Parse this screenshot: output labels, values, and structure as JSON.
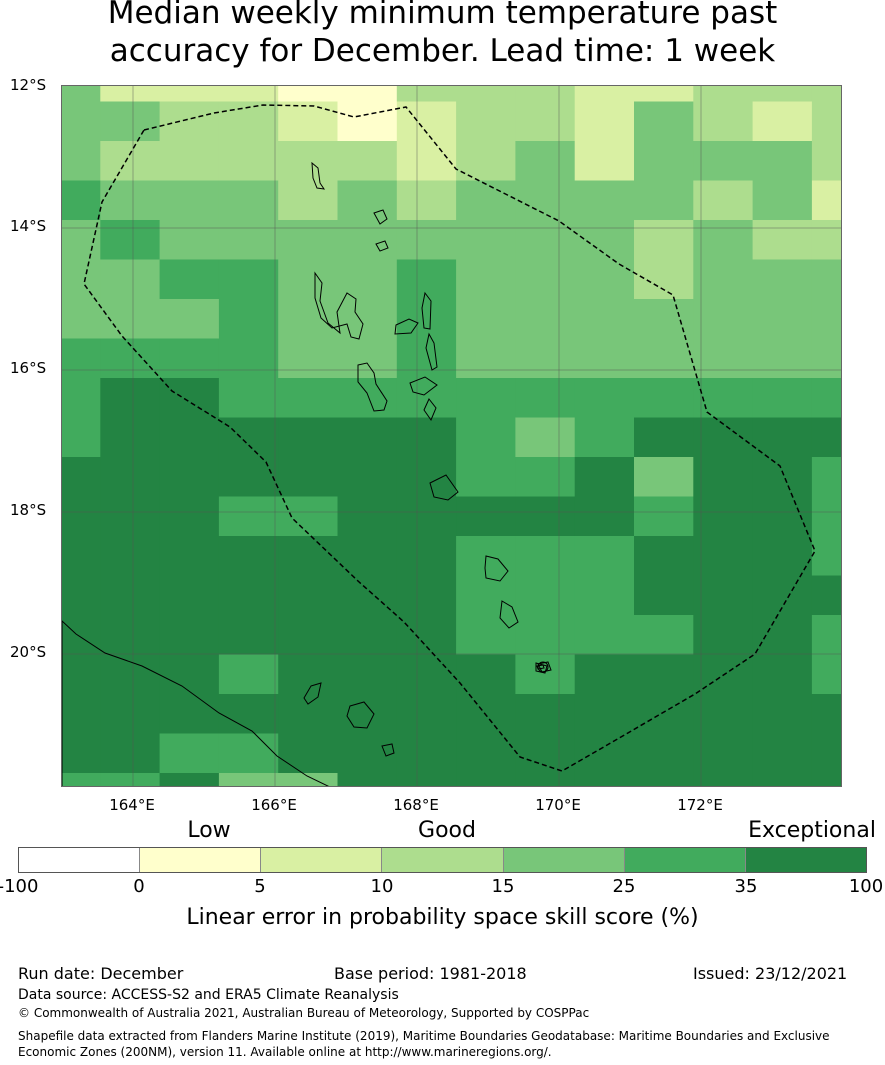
{
  "title_line1": "Median weekly minimum temperature past",
  "title_line2": "accuracy for December. Lead time: 1 week",
  "map": {
    "lat_labels": [
      "12°S",
      "14°S",
      "16°S",
      "18°S",
      "20°S"
    ],
    "lon_labels": [
      "164°E",
      "166°E",
      "168°E",
      "170°E",
      "172°E"
    ]
  },
  "legend": {
    "categories": [
      "Low",
      "Good",
      "Exceptional"
    ],
    "ticks": [
      "-100",
      "0",
      "5",
      "10",
      "15",
      "25",
      "35",
      "100"
    ],
    "colors": [
      "#ffffff",
      "#ffffcc",
      "#d9f0a3",
      "#addd8e",
      "#78c679",
      "#41ab5d",
      "#238443"
    ],
    "label": "Linear error in probability space skill score (%)"
  },
  "footer": {
    "run_date": "Run date: December",
    "base_period": "Base period: 1981-2018",
    "issued": "Issued: 23/12/2021",
    "data_source": "Data source: ACCESS-S2 and ERA5 Climate Reanalysis",
    "copyright": "© Commonwealth of Australia 2021, Australian Bureau of Meteorology, Supported by COSPPac",
    "shapefile_line1": "Shapefile data extracted from Flanders Marine Institute (2019), Maritime Boundaries Geodatabase: Maritime Boundaries and Exclusive",
    "shapefile_line2": "Economic Zones (200NM), version 11. Available online at http://www.marineregions.org/."
  },
  "grid_values": [
    [
      3,
      1,
      1,
      1,
      0,
      0,
      2,
      2,
      2,
      1,
      1,
      2,
      2,
      2
    ],
    [
      3,
      3,
      2,
      2,
      1,
      0,
      1,
      2,
      2,
      1,
      3,
      2,
      1,
      2
    ],
    [
      3,
      2,
      2,
      2,
      2,
      2,
      1,
      2,
      3,
      1,
      3,
      3,
      3,
      2
    ],
    [
      4,
      3,
      3,
      3,
      2,
      3,
      2,
      3,
      3,
      3,
      3,
      2,
      3,
      1
    ],
    [
      3,
      4,
      3,
      3,
      3,
      3,
      3,
      3,
      3,
      3,
      2,
      3,
      2,
      2
    ],
    [
      3,
      3,
      4,
      4,
      3,
      3,
      4,
      3,
      3,
      3,
      2,
      3,
      3,
      3
    ],
    [
      3,
      3,
      3,
      4,
      3,
      3,
      4,
      3,
      3,
      3,
      3,
      3,
      3,
      3
    ],
    [
      4,
      4,
      4,
      4,
      3,
      3,
      4,
      3,
      3,
      3,
      3,
      3,
      3,
      3
    ],
    [
      4,
      5,
      5,
      4,
      4,
      4,
      4,
      4,
      4,
      4,
      4,
      4,
      4,
      4
    ],
    [
      4,
      5,
      5,
      5,
      5,
      5,
      5,
      4,
      3,
      4,
      5,
      5,
      5,
      5
    ],
    [
      5,
      5,
      5,
      5,
      5,
      5,
      5,
      4,
      4,
      5,
      3,
      5,
      5,
      4
    ],
    [
      5,
      5,
      5,
      4,
      4,
      5,
      5,
      5,
      5,
      5,
      4,
      5,
      5,
      4
    ],
    [
      5,
      5,
      5,
      5,
      5,
      5,
      5,
      4,
      4,
      4,
      5,
      5,
      5,
      4
    ],
    [
      5,
      5,
      5,
      5,
      5,
      5,
      5,
      4,
      4,
      4,
      5,
      5,
      5,
      5
    ],
    [
      5,
      5,
      5,
      5,
      5,
      5,
      5,
      4,
      4,
      4,
      4,
      5,
      5,
      4
    ],
    [
      5,
      5,
      5,
      4,
      5,
      5,
      5,
      5,
      4,
      5,
      5,
      5,
      5,
      4
    ],
    [
      5,
      5,
      5,
      5,
      5,
      5,
      5,
      5,
      5,
      5,
      5,
      5,
      5,
      5
    ],
    [
      5,
      5,
      4,
      4,
      5,
      5,
      5,
      5,
      5,
      5,
      5,
      5,
      5,
      5
    ],
    [
      4,
      4,
      5,
      3,
      3,
      5,
      5,
      5,
      5,
      5,
      5,
      5,
      5,
      5
    ]
  ]
}
